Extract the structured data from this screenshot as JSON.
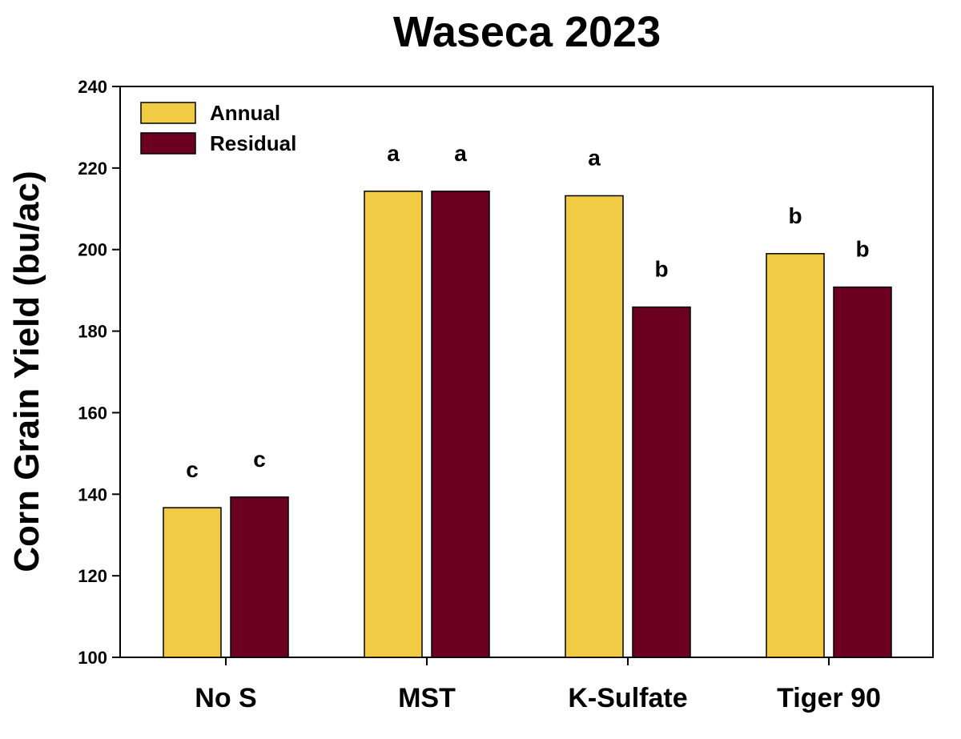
{
  "chart_data": {
    "type": "bar",
    "title": "Waseca 2023",
    "xlabel": "",
    "ylabel": "Corn Grain Yield (bu/ac)",
    "ylim": [
      100,
      240
    ],
    "yticks": [
      100,
      120,
      140,
      160,
      180,
      200,
      220,
      240
    ],
    "categories": [
      "No S",
      "MST",
      "K-Sulfate",
      "Tiger 90"
    ],
    "series": [
      {
        "name": "Annual",
        "color": "#F2CB45",
        "values": [
          136.7,
          214.3,
          213.2,
          199.0
        ],
        "labels": [
          "c",
          "a",
          "a",
          "b"
        ]
      },
      {
        "name": "Residual",
        "color": "#6B0020",
        "values": [
          139.3,
          214.3,
          185.9,
          190.8
        ],
        "labels": [
          "c",
          "a",
          "b",
          "b"
        ]
      }
    ],
    "legend_position": "top-left",
    "grid": false
  }
}
